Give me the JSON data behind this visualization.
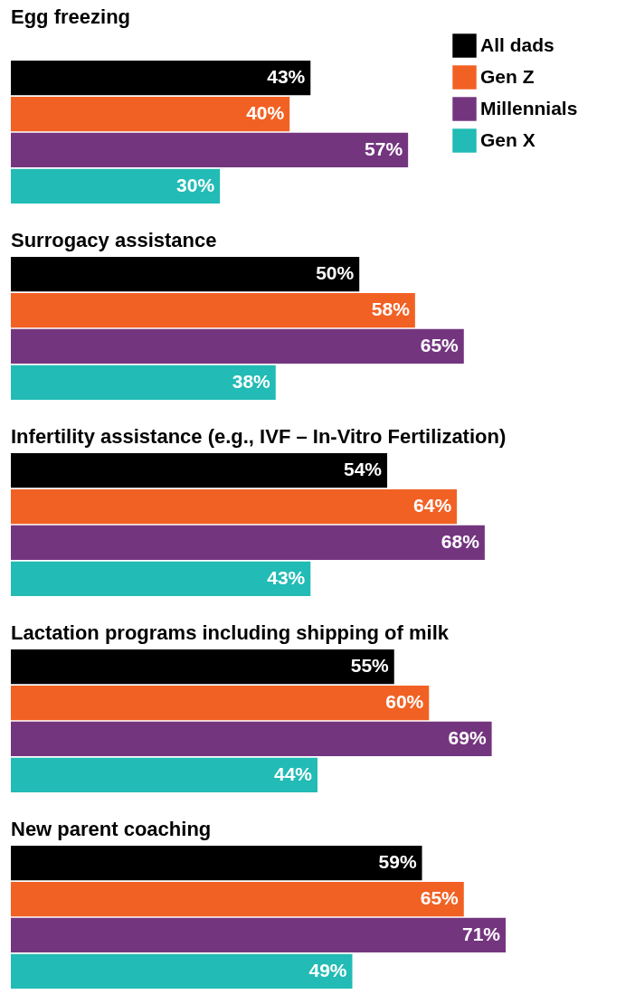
{
  "chart_data": {
    "type": "bar",
    "orientation": "horizontal",
    "categories": [
      "Egg freezing",
      "Surrogacy assistance",
      "Infertility assistance (e.g., IVF – In-Vitro Fertilization)",
      "Lactation programs including shipping of milk",
      "New parent coaching"
    ],
    "series": [
      {
        "name": "All dads",
        "color": "#000000",
        "values": [
          43,
          50,
          54,
          55,
          59
        ],
        "value_labels": [
          "43%",
          "50%",
          "54%",
          "55%",
          "59%"
        ]
      },
      {
        "name": "Gen Z",
        "color": "#f26124",
        "values": [
          40,
          58,
          64,
          60,
          65
        ],
        "value_labels": [
          "40%",
          "58%",
          "64%",
          "60%",
          "65%"
        ]
      },
      {
        "name": "Millennials",
        "color": "#74357f",
        "values": [
          57,
          65,
          68,
          69,
          71
        ],
        "value_labels": [
          "57%",
          "65%",
          "68%",
          "69%",
          "71%"
        ]
      },
      {
        "name": "Gen X",
        "color": "#22bbb5",
        "values": [
          30,
          38,
          43,
          44,
          49
        ],
        "value_labels": [
          "30%",
          "38%",
          "43%",
          "44%",
          "49%"
        ]
      }
    ],
    "legend": "top right"
  }
}
